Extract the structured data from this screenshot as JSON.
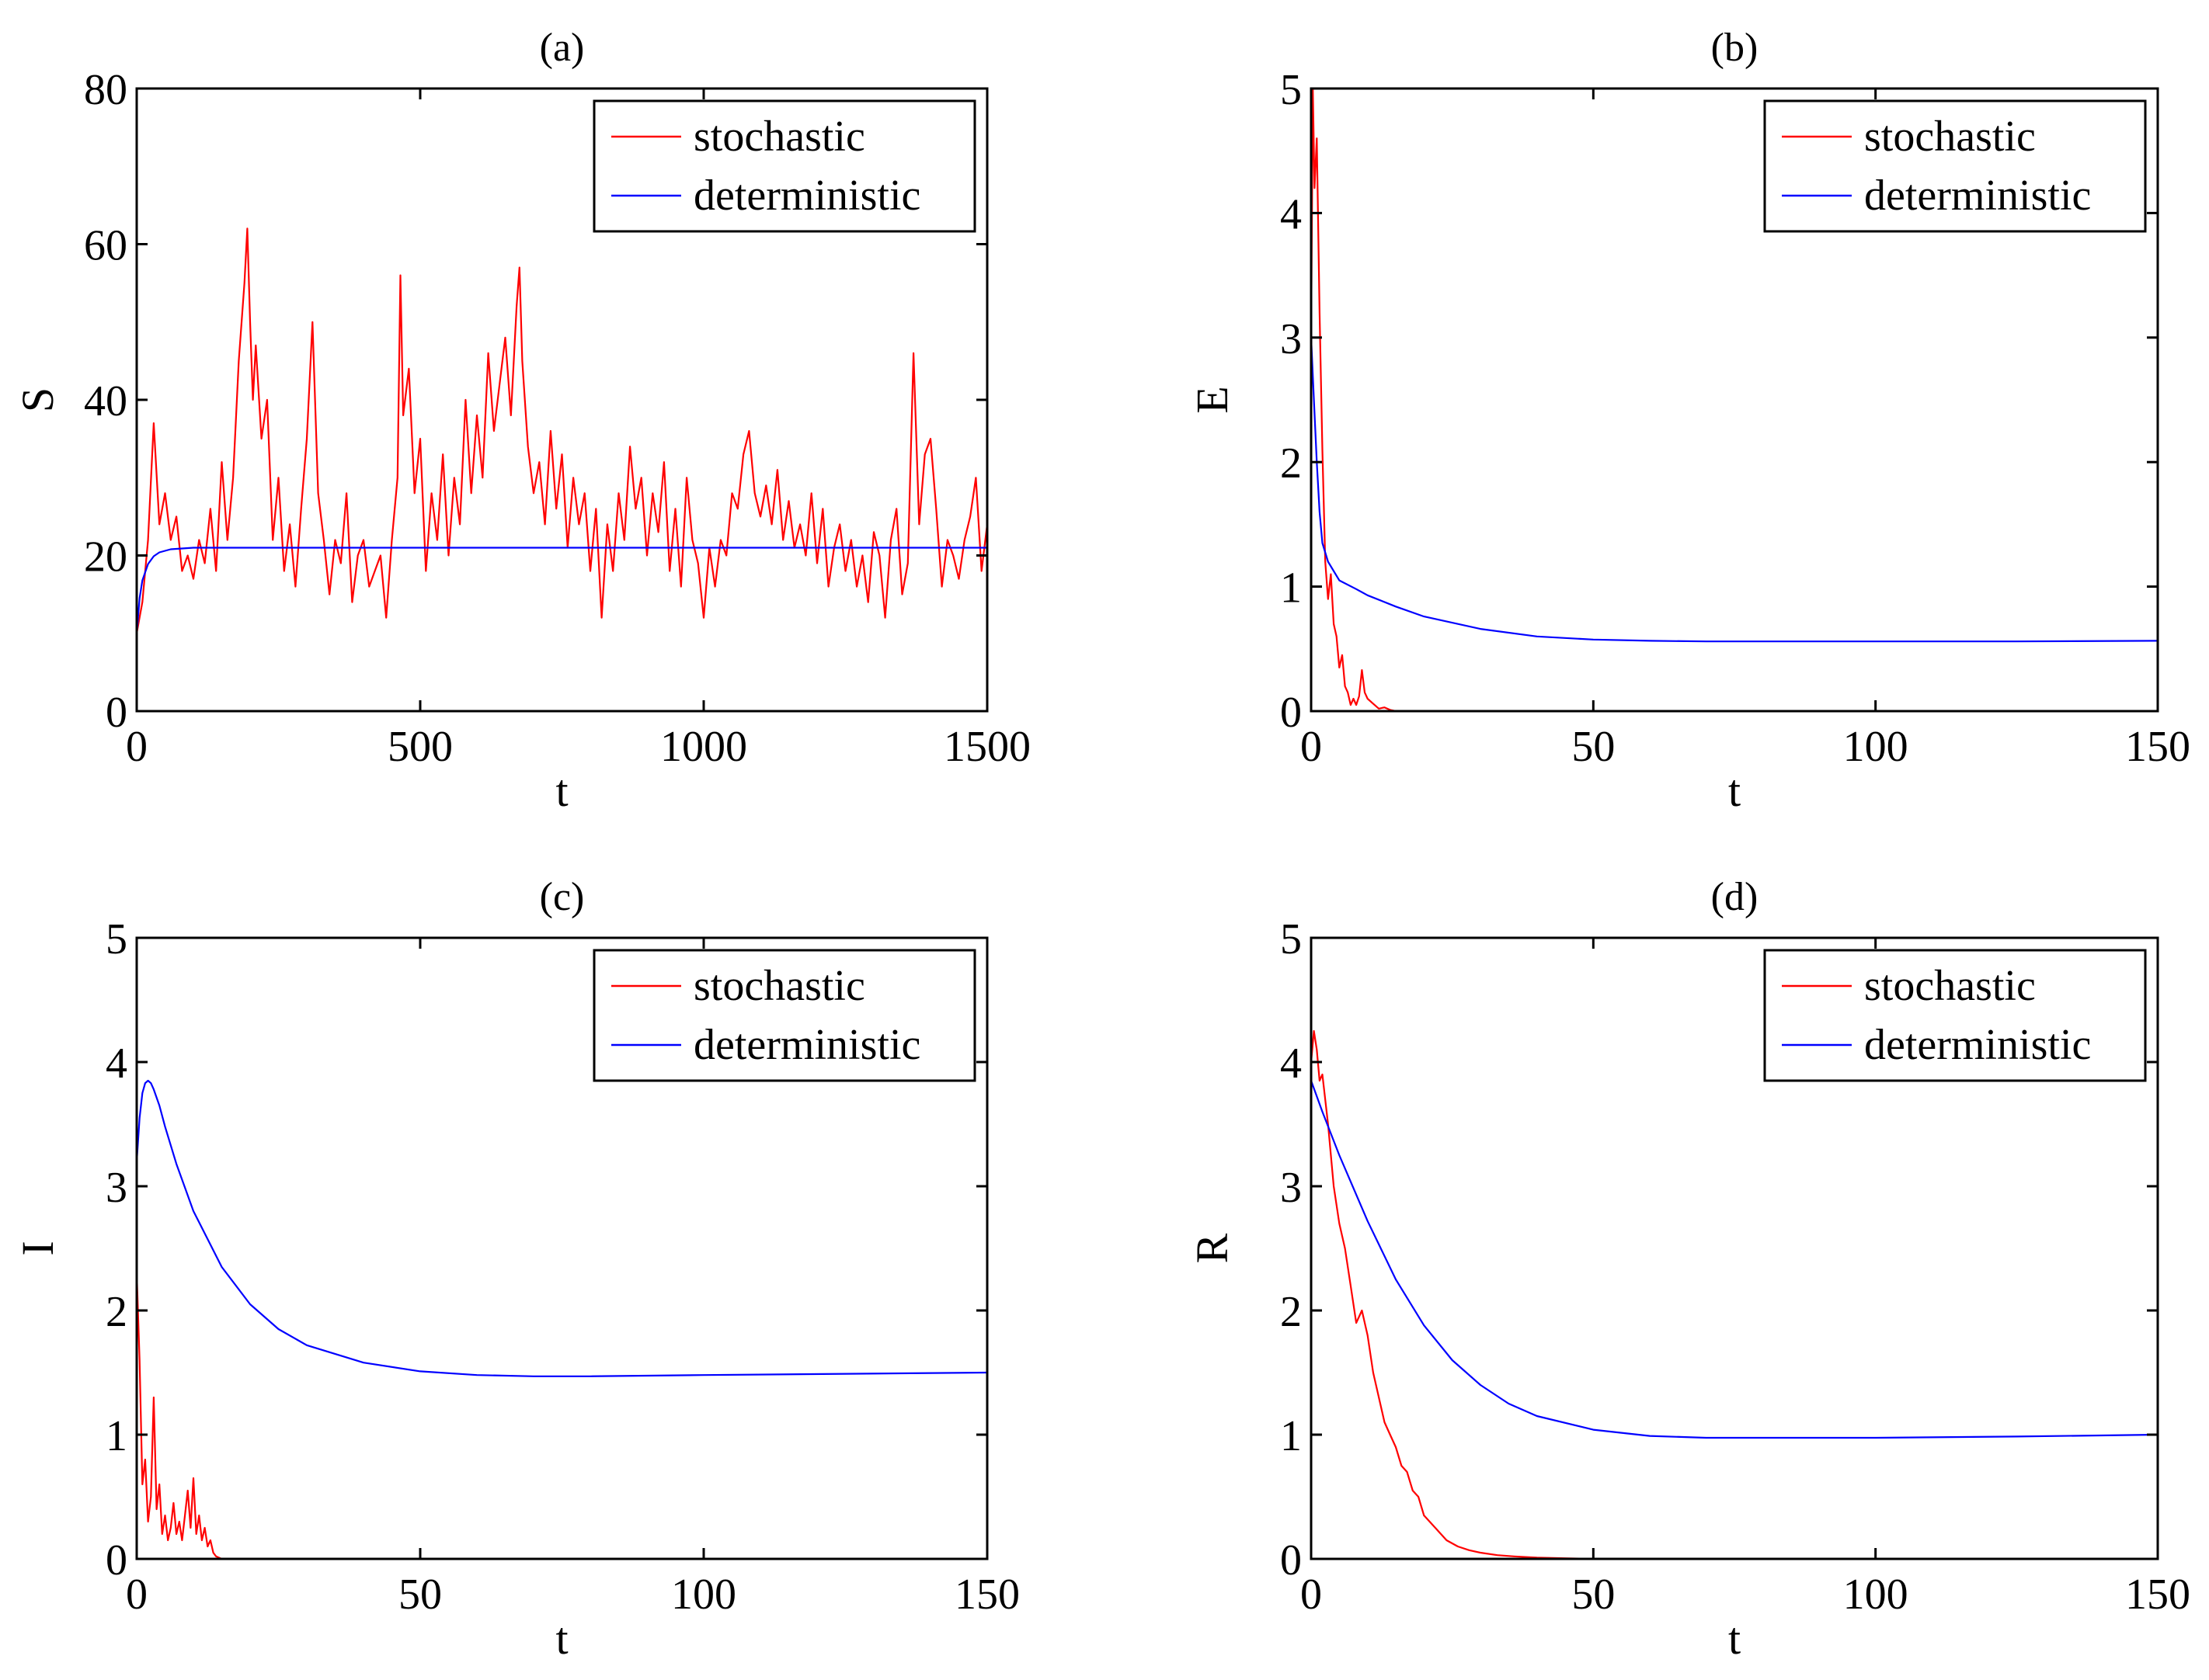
{
  "colors": {
    "stochastic": "#ff0000",
    "deterministic": "#0000ff",
    "axes": "#000000",
    "background": "#ffffff"
  },
  "chart_data": [
    {
      "id": "a",
      "type": "line",
      "title": "(a)",
      "xlabel": "t",
      "ylabel": "S",
      "xlim": [
        0,
        1500
      ],
      "ylim": [
        0,
        80
      ],
      "xticks": [
        0,
        500,
        1000,
        1500
      ],
      "yticks": [
        0,
        20,
        40,
        60,
        80
      ],
      "legend": {
        "position": "top-right",
        "entries": [
          "stochastic",
          "deterministic"
        ]
      },
      "series": [
        {
          "name": "stochastic",
          "x": [
            0,
            10,
            20,
            30,
            40,
            50,
            60,
            70,
            80,
            90,
            100,
            110,
            120,
            130,
            140,
            150,
            160,
            170,
            180,
            190,
            195,
            200,
            205,
            210,
            220,
            230,
            240,
            250,
            260,
            270,
            280,
            290,
            300,
            310,
            320,
            330,
            340,
            350,
            360,
            370,
            380,
            390,
            400,
            410,
            420,
            430,
            440,
            450,
            460,
            465,
            470,
            480,
            490,
            500,
            510,
            520,
            530,
            540,
            550,
            560,
            570,
            580,
            590,
            600,
            610,
            620,
            630,
            640,
            650,
            660,
            670,
            675,
            680,
            690,
            700,
            710,
            720,
            730,
            740,
            750,
            760,
            770,
            780,
            790,
            800,
            810,
            820,
            830,
            840,
            850,
            860,
            870,
            880,
            890,
            900,
            910,
            920,
            930,
            940,
            950,
            960,
            970,
            980,
            990,
            1000,
            1010,
            1020,
            1030,
            1040,
            1050,
            1060,
            1070,
            1080,
            1090,
            1100,
            1110,
            1120,
            1130,
            1140,
            1150,
            1160,
            1170,
            1180,
            1190,
            1200,
            1210,
            1220,
            1230,
            1240,
            1250,
            1260,
            1270,
            1280,
            1290,
            1300,
            1310,
            1320,
            1330,
            1340,
            1350,
            1360,
            1370,
            1380,
            1390,
            1400,
            1410,
            1420,
            1430,
            1440,
            1450,
            1460,
            1470,
            1480,
            1490,
            1500
          ],
          "y": [
            10,
            14,
            22,
            37,
            24,
            28,
            22,
            25,
            18,
            20,
            17,
            22,
            19,
            26,
            18,
            32,
            22,
            30,
            45,
            55,
            62,
            50,
            40,
            47,
            35,
            40,
            22,
            30,
            18,
            24,
            16,
            26,
            35,
            50,
            28,
            22,
            15,
            22,
            19,
            28,
            14,
            20,
            22,
            16,
            18,
            20,
            12,
            22,
            30,
            56,
            38,
            44,
            28,
            35,
            18,
            28,
            22,
            33,
            20,
            30,
            24,
            40,
            28,
            38,
            30,
            46,
            36,
            42,
            48,
            38,
            52,
            57,
            45,
            34,
            28,
            32,
            24,
            36,
            26,
            33,
            21,
            30,
            24,
            28,
            18,
            26,
            12,
            24,
            18,
            28,
            22,
            34,
            26,
            30,
            20,
            28,
            23,
            32,
            18,
            26,
            16,
            30,
            22,
            19,
            12,
            21,
            16,
            22,
            20,
            28,
            26,
            33,
            36,
            28,
            25,
            29,
            24,
            31,
            22,
            27,
            21,
            24,
            20,
            28,
            19,
            26,
            16,
            21,
            24,
            18,
            22,
            16,
            20,
            14,
            23,
            20,
            12,
            22,
            26,
            15,
            19,
            46,
            24,
            33,
            35,
            26,
            16,
            22,
            20,
            17,
            22,
            25,
            30,
            18,
            24
          ],
          "color": "#ff0000"
        },
        {
          "name": "deterministic",
          "x": [
            0,
            5,
            10,
            20,
            30,
            40,
            60,
            80,
            100,
            150,
            200,
            1500
          ],
          "y": [
            10,
            14.5,
            16.8,
            18.9,
            19.9,
            20.4,
            20.8,
            20.9,
            21,
            21,
            21,
            21
          ],
          "color": "#0000ff"
        }
      ]
    },
    {
      "id": "b",
      "type": "line",
      "title": "(b)",
      "xlabel": "t",
      "ylabel": "E",
      "xlim": [
        0,
        150
      ],
      "ylim": [
        0,
        5
      ],
      "xticks": [
        0,
        50,
        100,
        150
      ],
      "yticks": [
        0,
        1,
        2,
        3,
        4,
        5
      ],
      "legend": {
        "position": "top-right",
        "entries": [
          "stochastic",
          "deterministic"
        ]
      },
      "series": [
        {
          "name": "stochastic",
          "x": [
            0,
            0.3,
            0.6,
            1,
            1.5,
            2,
            2.5,
            3,
            3.5,
            4,
            4.5,
            5,
            5.5,
            6,
            6.5,
            7,
            7.5,
            8,
            8.5,
            9,
            9.5,
            10,
            11,
            12,
            13,
            14,
            15,
            150
          ],
          "y": [
            3,
            5,
            4.2,
            4.6,
            3.2,
            2.1,
            1.2,
            0.9,
            1.1,
            0.7,
            0.6,
            0.35,
            0.45,
            0.2,
            0.15,
            0.05,
            0.1,
            0.05,
            0.12,
            0.33,
            0.15,
            0.1,
            0.06,
            0.02,
            0.03,
            0.01,
            0,
            0
          ],
          "color": "#ff0000"
        },
        {
          "name": "deterministic",
          "x": [
            0,
            0.5,
            1,
            1.5,
            2,
            3,
            5,
            8,
            10,
            15,
            20,
            30,
            40,
            50,
            60,
            70,
            80,
            100,
            125,
            150
          ],
          "y": [
            3,
            2.5,
            2,
            1.6,
            1.35,
            1.2,
            1.05,
            0.98,
            0.93,
            0.84,
            0.76,
            0.66,
            0.6,
            0.575,
            0.565,
            0.56,
            0.56,
            0.56,
            0.56,
            0.565
          ],
          "color": "#0000ff"
        }
      ]
    },
    {
      "id": "c",
      "type": "line",
      "title": "(c)",
      "xlabel": "t",
      "ylabel": "I",
      "xlim": [
        0,
        150
      ],
      "ylim": [
        0,
        5
      ],
      "xticks": [
        0,
        50,
        100,
        150
      ],
      "yticks": [
        0,
        1,
        2,
        3,
        4,
        5
      ],
      "legend": {
        "position": "top-right",
        "entries": [
          "stochastic",
          "deterministic"
        ]
      },
      "series": [
        {
          "name": "stochastic",
          "x": [
            0,
            0.5,
            1,
            1.5,
            2,
            2.5,
            3,
            3.5,
            4,
            4.5,
            5,
            5.5,
            6,
            6.5,
            7,
            7.5,
            8,
            8.5,
            9,
            9.5,
            10,
            10.5,
            11,
            11.5,
            12,
            12.5,
            13,
            13.5,
            14,
            15,
            150
          ],
          "y": [
            2.3,
            1.6,
            0.6,
            0.8,
            0.3,
            0.5,
            1.3,
            0.4,
            0.6,
            0.2,
            0.35,
            0.15,
            0.25,
            0.45,
            0.2,
            0.3,
            0.15,
            0.35,
            0.55,
            0.25,
            0.65,
            0.2,
            0.35,
            0.15,
            0.25,
            0.1,
            0.15,
            0.05,
            0.02,
            0,
            0
          ],
          "color": "#ff0000"
        },
        {
          "name": "deterministic",
          "x": [
            0,
            0.5,
            1,
            1.5,
            2,
            2.5,
            3,
            4,
            5,
            7,
            10,
            15,
            20,
            25,
            30,
            40,
            50,
            60,
            70,
            80,
            90,
            100,
            125,
            150
          ],
          "y": [
            3.2,
            3.55,
            3.75,
            3.83,
            3.85,
            3.83,
            3.78,
            3.65,
            3.48,
            3.18,
            2.8,
            2.35,
            2.05,
            1.85,
            1.72,
            1.58,
            1.51,
            1.48,
            1.47,
            1.47,
            1.475,
            1.48,
            1.49,
            1.5
          ],
          "color": "#0000ff"
        }
      ]
    },
    {
      "id": "d",
      "type": "line",
      "title": "(d)",
      "xlabel": "t",
      "ylabel": "R",
      "xlim": [
        0,
        150
      ],
      "ylim": [
        0,
        5
      ],
      "xticks": [
        0,
        50,
        100,
        150
      ],
      "yticks": [
        0,
        1,
        2,
        3,
        4,
        5
      ],
      "legend": {
        "position": "top-right",
        "entries": [
          "stochastic",
          "deterministic"
        ]
      },
      "series": [
        {
          "name": "stochastic",
          "x": [
            0,
            0.5,
            1,
            1.5,
            2,
            3,
            4,
            5,
            6,
            7,
            8,
            9,
            10,
            11,
            12,
            13,
            14,
            15,
            16,
            17,
            18,
            19,
            20,
            22,
            24,
            26,
            28,
            30,
            33,
            36,
            40,
            45,
            50,
            150
          ],
          "y": [
            4.0,
            4.25,
            4.1,
            3.85,
            3.9,
            3.5,
            3.0,
            2.7,
            2.5,
            2.2,
            1.9,
            2.0,
            1.8,
            1.5,
            1.3,
            1.1,
            1.0,
            0.9,
            0.75,
            0.7,
            0.55,
            0.5,
            0.35,
            0.25,
            0.15,
            0.1,
            0.07,
            0.05,
            0.03,
            0.02,
            0.01,
            0.005,
            0,
            0
          ],
          "color": "#ff0000"
        },
        {
          "name": "deterministic",
          "x": [
            0,
            2,
            5,
            10,
            15,
            20,
            25,
            30,
            35,
            40,
            50,
            60,
            70,
            80,
            100,
            125,
            150
          ],
          "y": [
            3.85,
            3.6,
            3.25,
            2.72,
            2.25,
            1.88,
            1.6,
            1.4,
            1.25,
            1.15,
            1.04,
            0.99,
            0.975,
            0.975,
            0.975,
            0.985,
            1.0
          ],
          "color": "#0000ff"
        }
      ]
    }
  ]
}
